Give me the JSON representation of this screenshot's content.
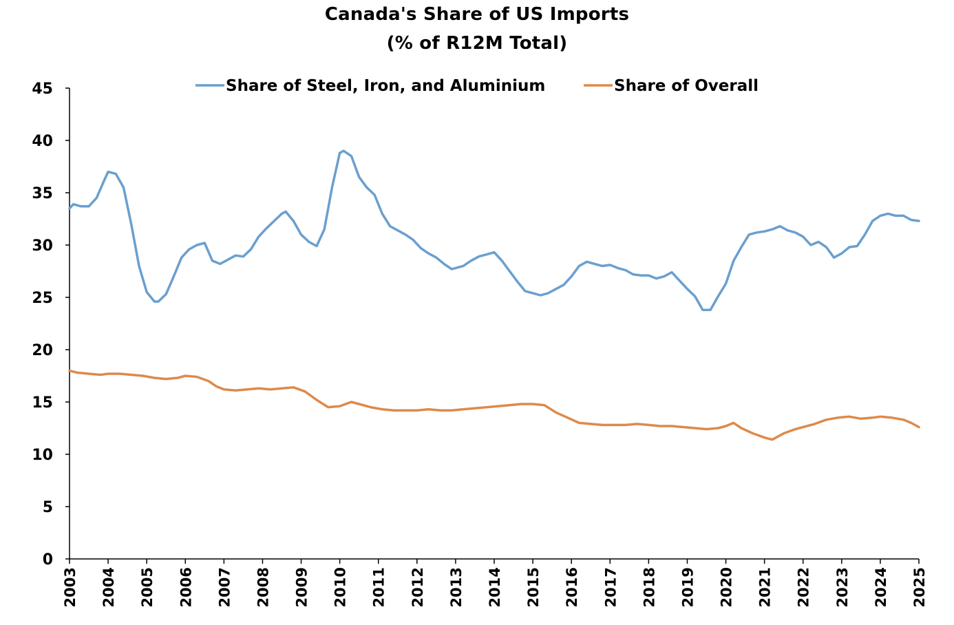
{
  "chart_data": {
    "type": "line",
    "title": "Canada's Share of US Imports",
    "subtitle": "(% of R12M Total)",
    "xlabel": "",
    "ylabel": "",
    "ylim": [
      0,
      45
    ],
    "yticks": [
      0,
      5,
      10,
      15,
      20,
      25,
      30,
      35,
      40,
      45
    ],
    "xlim": [
      2003,
      2025
    ],
    "xticks": [
      "2003",
      "2004",
      "2005",
      "2006",
      "2007",
      "2008",
      "2009",
      "2010",
      "2011",
      "2012",
      "2013",
      "2014",
      "2015",
      "2016",
      "2017",
      "2018",
      "2019",
      "2020",
      "2021",
      "2022",
      "2023",
      "2024",
      "2025"
    ],
    "grid": false,
    "legend": "top-center",
    "series": [
      {
        "name": "Share of Steel, Iron, and Aluminium",
        "color": "#6A9FCE",
        "x": [
          2003.0,
          2003.1,
          2003.3,
          2003.5,
          2003.7,
          2003.9,
          2004.0,
          2004.2,
          2004.4,
          2004.6,
          2004.8,
          2005.0,
          2005.2,
          2005.3,
          2005.5,
          2005.7,
          2005.9,
          2006.1,
          2006.3,
          2006.5,
          2006.7,
          2006.9,
          2007.1,
          2007.3,
          2007.5,
          2007.7,
          2007.9,
          2008.1,
          2008.3,
          2008.5,
          2008.6,
          2008.8,
          2009.0,
          2009.2,
          2009.4,
          2009.6,
          2009.8,
          2010.0,
          2010.1,
          2010.3,
          2010.5,
          2010.7,
          2010.9,
          2011.1,
          2011.3,
          2011.5,
          2011.7,
          2011.9,
          2012.1,
          2012.3,
          2012.5,
          2012.7,
          2012.9,
          2013.0,
          2013.2,
          2013.4,
          2013.6,
          2013.8,
          2014.0,
          2014.2,
          2014.4,
          2014.6,
          2014.8,
          2015.0,
          2015.2,
          2015.4,
          2015.6,
          2015.8,
          2016.0,
          2016.2,
          2016.4,
          2016.6,
          2016.8,
          2017.0,
          2017.2,
          2017.4,
          2017.6,
          2017.8,
          2018.0,
          2018.2,
          2018.4,
          2018.6,
          2018.8,
          2019.0,
          2019.2,
          2019.4,
          2019.6,
          2019.8,
          2020.0,
          2020.2,
          2020.4,
          2020.6,
          2020.8,
          2021.0,
          2021.2,
          2021.4,
          2021.6,
          2021.8,
          2022.0,
          2022.2,
          2022.4,
          2022.6,
          2022.8,
          2023.0,
          2023.2,
          2023.4,
          2023.6,
          2023.8,
          2024.0,
          2024.2,
          2024.4,
          2024.6,
          2024.8,
          2025.0
        ],
        "values": [
          33.5,
          33.9,
          33.7,
          33.7,
          34.5,
          36.2,
          37.0,
          36.8,
          35.5,
          32.0,
          28.0,
          25.5,
          24.6,
          24.6,
          25.3,
          27.0,
          28.8,
          29.6,
          30.0,
          30.2,
          28.5,
          28.2,
          28.6,
          29.0,
          28.9,
          29.6,
          30.8,
          31.6,
          32.3,
          33.0,
          33.2,
          32.3,
          31.0,
          30.3,
          29.9,
          31.5,
          35.5,
          38.8,
          39.0,
          38.5,
          36.5,
          35.5,
          34.8,
          33.0,
          31.8,
          31.4,
          31.0,
          30.5,
          29.7,
          29.2,
          28.8,
          28.2,
          27.7,
          27.8,
          28.0,
          28.5,
          28.9,
          29.1,
          29.3,
          28.5,
          27.5,
          26.5,
          25.6,
          25.4,
          25.2,
          25.4,
          25.8,
          26.2,
          27.0,
          28.0,
          28.4,
          28.2,
          28.0,
          28.1,
          27.8,
          27.6,
          27.2,
          27.1,
          27.1,
          26.8,
          27.0,
          27.4,
          26.6,
          25.8,
          25.1,
          23.8,
          23.8,
          25.1,
          26.3,
          28.5,
          29.8,
          31.0,
          31.2,
          31.3,
          31.5,
          31.8,
          31.4,
          31.2,
          30.8,
          30.0,
          30.3,
          29.8,
          28.8,
          29.2,
          29.8,
          29.9,
          31.0,
          32.3,
          32.8,
          33.0,
          32.8,
          32.8,
          32.4,
          32.3
        ]
      },
      {
        "name": "Share of Overall",
        "color": "#DD8A4B",
        "x": [
          2003.0,
          2003.2,
          2003.5,
          2003.8,
          2004.0,
          2004.3,
          2004.6,
          2004.9,
          2005.2,
          2005.5,
          2005.8,
          2006.0,
          2006.3,
          2006.6,
          2006.8,
          2007.0,
          2007.3,
          2007.6,
          2007.9,
          2008.2,
          2008.5,
          2008.8,
          2009.1,
          2009.4,
          2009.7,
          2010.0,
          2010.3,
          2010.5,
          2010.8,
          2011.1,
          2011.4,
          2011.7,
          2012.0,
          2012.3,
          2012.6,
          2012.9,
          2013.2,
          2013.5,
          2013.8,
          2014.1,
          2014.4,
          2014.7,
          2015.0,
          2015.3,
          2015.6,
          2015.9,
          2016.2,
          2016.5,
          2016.8,
          2017.1,
          2017.4,
          2017.7,
          2018.0,
          2018.3,
          2018.6,
          2018.9,
          2019.2,
          2019.5,
          2019.8,
          2020.0,
          2020.2,
          2020.4,
          2020.7,
          2021.0,
          2021.2,
          2021.5,
          2021.8,
          2022.0,
          2022.3,
          2022.6,
          2022.9,
          2023.2,
          2023.5,
          2023.8,
          2024.0,
          2024.3,
          2024.6,
          2024.8,
          2025.0
        ],
        "values": [
          18.0,
          17.8,
          17.7,
          17.6,
          17.7,
          17.7,
          17.6,
          17.5,
          17.3,
          17.2,
          17.3,
          17.5,
          17.4,
          17.0,
          16.5,
          16.2,
          16.1,
          16.2,
          16.3,
          16.2,
          16.3,
          16.4,
          16.0,
          15.2,
          14.5,
          14.6,
          15.0,
          14.8,
          14.5,
          14.3,
          14.2,
          14.2,
          14.2,
          14.3,
          14.2,
          14.2,
          14.3,
          14.4,
          14.5,
          14.6,
          14.7,
          14.8,
          14.8,
          14.7,
          14.0,
          13.5,
          13.0,
          12.9,
          12.8,
          12.8,
          12.8,
          12.9,
          12.8,
          12.7,
          12.7,
          12.6,
          12.5,
          12.4,
          12.5,
          12.7,
          13.0,
          12.5,
          12.0,
          11.6,
          11.4,
          12.0,
          12.4,
          12.6,
          12.9,
          13.3,
          13.5,
          13.6,
          13.4,
          13.5,
          13.6,
          13.5,
          13.3,
          13.0,
          12.6
        ]
      }
    ]
  }
}
